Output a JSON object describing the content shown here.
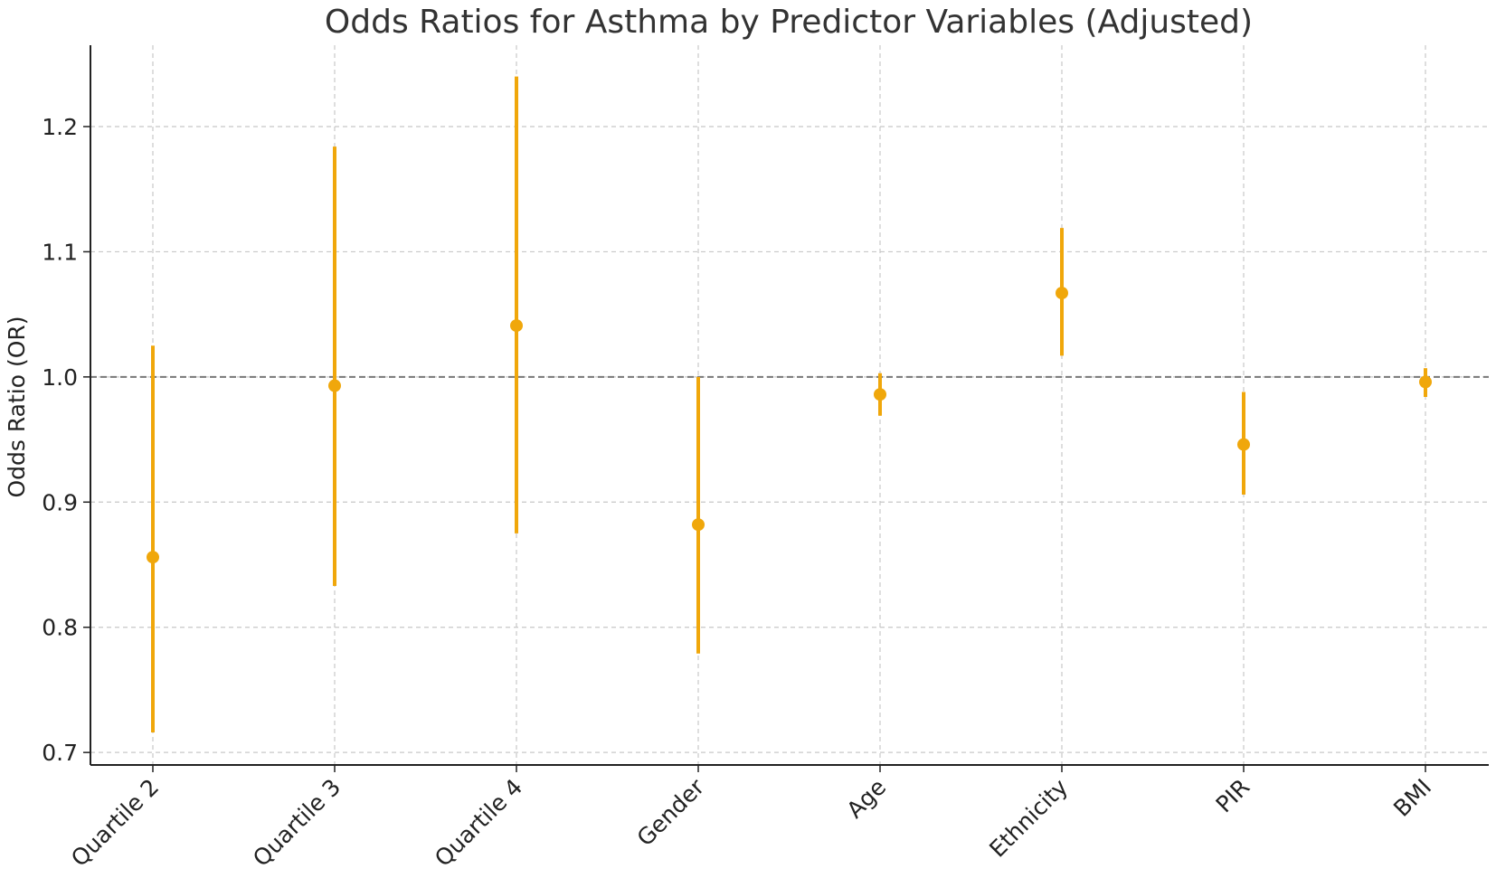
{
  "chart_data": {
    "type": "scatter",
    "title": "Odds Ratios for Asthma by Predictor Variables (Adjusted)",
    "xlabel": "",
    "ylabel": "Odds Ratio (OR)",
    "categories": [
      "Quartile 2",
      "Quartile 3",
      "Quartile 4",
      "Gender",
      "Age",
      "Ethnicity",
      "PIR",
      "BMI"
    ],
    "points": [
      {
        "category": "Quartile 2",
        "or": 0.856,
        "ci_low": 0.716,
        "ci_high": 1.025
      },
      {
        "category": "Quartile 3",
        "or": 0.993,
        "ci_low": 0.833,
        "ci_high": 1.184
      },
      {
        "category": "Quartile 4",
        "or": 1.041,
        "ci_low": 0.875,
        "ci_high": 1.24
      },
      {
        "category": "Gender",
        "or": 0.882,
        "ci_low": 0.779,
        "ci_high": 1.0
      },
      {
        "category": "Age",
        "or": 0.986,
        "ci_low": 0.969,
        "ci_high": 1.003
      },
      {
        "category": "Ethnicity",
        "or": 1.067,
        "ci_low": 1.017,
        "ci_high": 1.119
      },
      {
        "category": "PIR",
        "or": 0.946,
        "ci_low": 0.906,
        "ci_high": 0.988
      },
      {
        "category": "BMI",
        "or": 0.996,
        "ci_low": 0.984,
        "ci_high": 1.007
      }
    ],
    "yticks": [
      "0.7",
      "0.8",
      "0.9",
      "1.0",
      "1.1",
      "1.2"
    ],
    "ylim": [
      0.69,
      1.265
    ],
    "reference_line": 1.0,
    "grid": true,
    "color": "#f0a70b",
    "reference_color": "#777777"
  }
}
